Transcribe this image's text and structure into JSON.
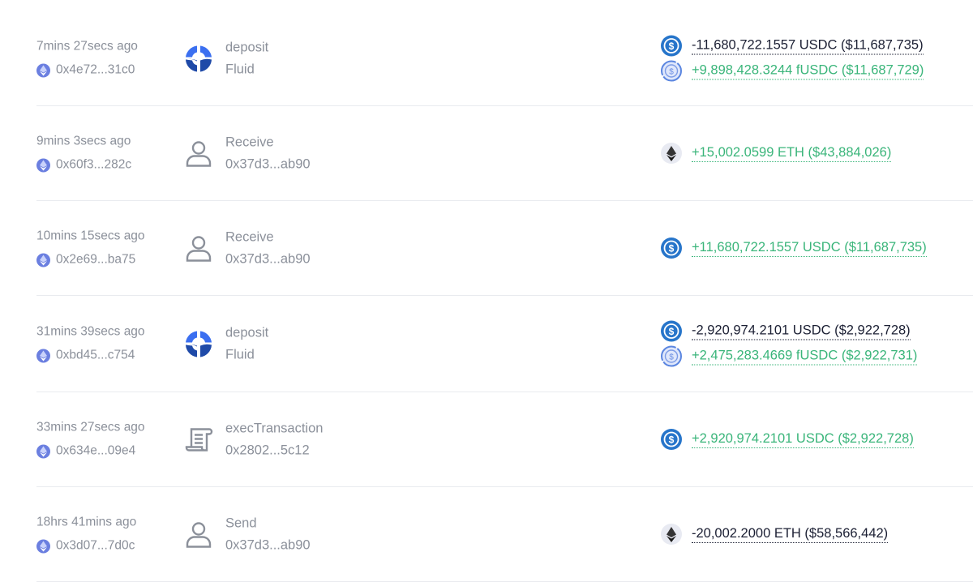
{
  "transactions": [
    {
      "time": "7mins 27secs ago",
      "hash": "0x4e72...31c0",
      "type_icon": "fluid-logo",
      "type": "deposit",
      "sub": "Fluid",
      "amounts": [
        {
          "token_icon": "usdc-icon",
          "text": "-11,680,722.1557 USDC ($11,687,735)",
          "sign": "neg"
        },
        {
          "token_icon": "fusdc-icon",
          "text": "+9,898,428.3244 fUSDC ($11,687,729)",
          "sign": "pos"
        }
      ]
    },
    {
      "time": "9mins 3secs ago",
      "hash": "0x60f3...282c",
      "type_icon": "user-icon",
      "type": "Receive",
      "sub": "0x37d3...ab90",
      "amounts": [
        {
          "token_icon": "eth-icon",
          "text": "+15,002.0599 ETH ($43,884,026)",
          "sign": "pos"
        }
      ]
    },
    {
      "time": "10mins 15secs ago",
      "hash": "0x2e69...ba75",
      "type_icon": "user-icon",
      "type": "Receive",
      "sub": "0x37d3...ab90",
      "amounts": [
        {
          "token_icon": "usdc-icon",
          "text": "+11,680,722.1557 USDC ($11,687,735)",
          "sign": "pos"
        }
      ]
    },
    {
      "time": "31mins 39secs ago",
      "hash": "0xbd45...c754",
      "type_icon": "fluid-logo",
      "type": "deposit",
      "sub": "Fluid",
      "amounts": [
        {
          "token_icon": "usdc-icon",
          "text": "-2,920,974.2101 USDC ($2,922,728)",
          "sign": "neg"
        },
        {
          "token_icon": "fusdc-icon",
          "text": "+2,475,283.4669 fUSDC ($2,922,731)",
          "sign": "pos"
        }
      ]
    },
    {
      "time": "33mins 27secs ago",
      "hash": "0x634e...09e4",
      "type_icon": "scroll-icon",
      "type": "execTransaction",
      "sub": "0x2802...5c12",
      "amounts": [
        {
          "token_icon": "usdc-icon",
          "text": "+2,920,974.2101 USDC ($2,922,728)",
          "sign": "pos"
        }
      ]
    },
    {
      "time": "18hrs 41mins ago",
      "hash": "0x3d07...7d0c",
      "type_icon": "user-icon",
      "type": "Send",
      "sub": "0x37d3...ab90",
      "amounts": [
        {
          "token_icon": "eth-icon",
          "text": "-20,002.2000 ETH ($58,566,442)",
          "sign": "neg"
        }
      ]
    }
  ],
  "colors": {
    "negative": "#1b1f33",
    "positive": "#3ab57a",
    "usdc": "#2775ca",
    "chain": "#6b7fe0"
  }
}
